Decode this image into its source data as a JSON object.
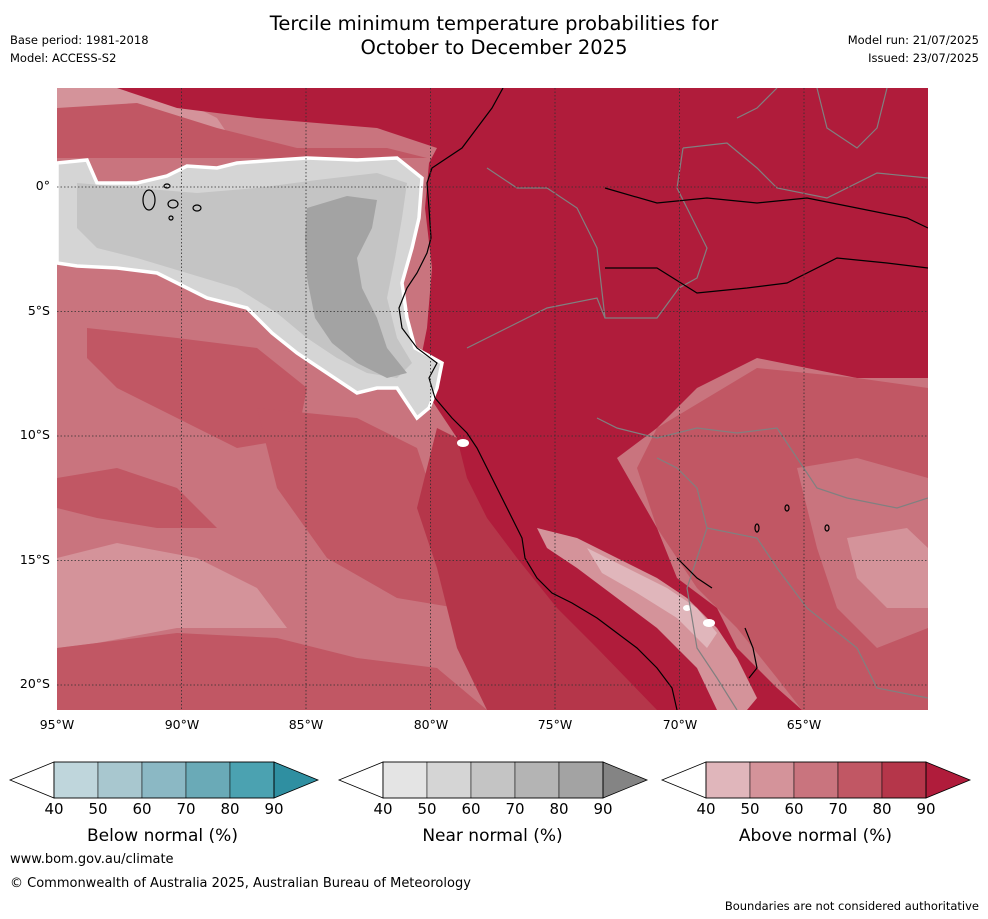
{
  "header": {
    "title_line1": "Tercile minimum temperature probabilities for",
    "title_line2": "October to December 2025",
    "base_period": "Base period: 1981-2018",
    "model": "Model: ACCESS-S2",
    "model_run": "Model run: 21/07/2025",
    "issued": "Issued: 23/07/2025"
  },
  "map": {
    "lat_labels": [
      "0°",
      "5°S",
      "10°S",
      "15°S",
      "20°S"
    ],
    "lon_labels": [
      "95°W",
      "90°W",
      "85°W",
      "80°W",
      "75°W",
      "70°W",
      "65°W"
    ],
    "region": "Eastern Pacific / western South America",
    "dominant_category": "Above normal"
  },
  "colorbars": [
    {
      "title": "Below normal (%)",
      "ticks": [
        "40",
        "50",
        "60",
        "70",
        "80",
        "90"
      ],
      "colors": [
        "#bfd6dc",
        "#a8c7cf",
        "#8bb8c4",
        "#6aaab7",
        "#4ba2b1",
        "#2f8fa1"
      ]
    },
    {
      "title": "Near normal (%)",
      "ticks": [
        "40",
        "50",
        "60",
        "70",
        "80",
        "90"
      ],
      "colors": [
        "#e4e4e4",
        "#d5d5d5",
        "#c4c4c4",
        "#b4b4b4",
        "#a3a3a3",
        "#848484"
      ]
    },
    {
      "title": "Above normal (%)",
      "ticks": [
        "40",
        "50",
        "60",
        "70",
        "80",
        "90"
      ],
      "colors": [
        "#e0b6bb",
        "#d4939a",
        "#c9747e",
        "#c15764",
        "#b5364a",
        "#b01c3b"
      ]
    }
  ],
  "footer": {
    "url": "www.bom.gov.au/climate",
    "copyright": "© Commonwealth of Australia 2025, Australian Bureau of Meteorology",
    "disclaimer": "Boundaries are not considered authoritative"
  }
}
